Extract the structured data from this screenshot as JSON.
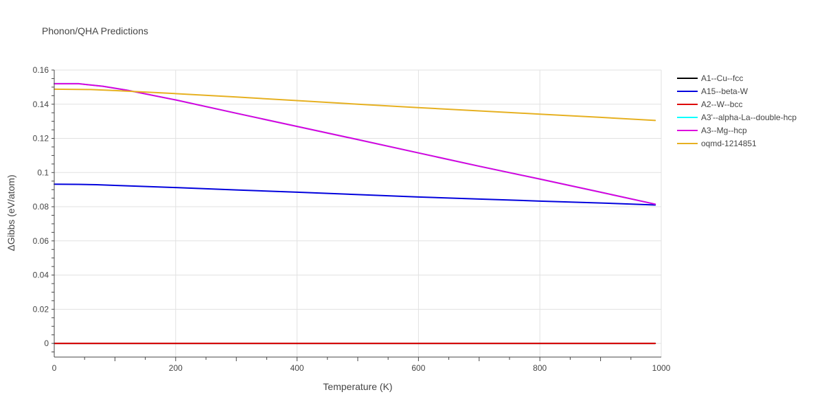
{
  "chart_data": {
    "type": "line",
    "title": "Phonon/QHA Predictions",
    "xlabel": "Temperature (K)",
    "ylabel": "ΔGibbs (eV/atom)",
    "xlim": [
      0,
      1000
    ],
    "ylim": [
      -0.008,
      0.16
    ],
    "xticks": [
      0,
      200,
      400,
      600,
      800,
      1000
    ],
    "xtick_labels": [
      "0",
      "200",
      "400",
      "600",
      "800",
      "1000"
    ],
    "yticks": [
      0,
      0.02,
      0.04,
      0.06,
      0.08,
      0.1,
      0.12,
      0.14,
      0.16
    ],
    "ytick_labels": [
      "0",
      "0.02",
      "0.04",
      "0.06",
      "0.08",
      "0.1",
      "0.12",
      "0.14",
      "0.16"
    ],
    "grid": true,
    "legend_position": "right",
    "series": [
      {
        "name": "A1--Cu--fcc",
        "color": "#000000",
        "x": [
          0,
          990
        ],
        "y": [
          0,
          0
        ]
      },
      {
        "name": "A15--beta-W",
        "color": "#0000dd",
        "x": [
          0,
          40,
          70,
          100,
          200,
          300,
          400,
          500,
          600,
          700,
          800,
          900,
          990
        ],
        "y": [
          0.0932,
          0.0931,
          0.0929,
          0.0925,
          0.0912,
          0.0898,
          0.0885,
          0.0871,
          0.0857,
          0.0845,
          0.0833,
          0.0822,
          0.081
        ]
      },
      {
        "name": "A2--W--bcc",
        "color": "#dd0000",
        "x": [
          0,
          990
        ],
        "y": [
          0,
          0
        ]
      },
      {
        "name": "A3'--alpha-La--double-hcp",
        "color": "#00ffff",
        "x": [
          0,
          40,
          80,
          120,
          200,
          300,
          400,
          500,
          600,
          700,
          800,
          900,
          990
        ],
        "y": [
          0.152,
          0.152,
          0.1505,
          0.1482,
          0.1425,
          0.1347,
          0.127,
          0.1193,
          0.1115,
          0.1037,
          0.0962,
          0.0885,
          0.0815
        ]
      },
      {
        "name": "A3--Mg--hcp",
        "color": "#dd00dd",
        "x": [
          0,
          40,
          80,
          120,
          200,
          300,
          400,
          500,
          600,
          700,
          800,
          900,
          990
        ],
        "y": [
          0.152,
          0.152,
          0.1505,
          0.1482,
          0.1425,
          0.1347,
          0.127,
          0.1193,
          0.1115,
          0.1037,
          0.0962,
          0.0885,
          0.0815
        ]
      },
      {
        "name": "oqmd-1214851",
        "color": "#e6b020",
        "x": [
          0,
          60,
          100,
          200,
          300,
          400,
          500,
          600,
          700,
          800,
          900,
          990
        ],
        "y": [
          0.1488,
          0.1486,
          0.148,
          0.1462,
          0.1442,
          0.1421,
          0.14,
          0.138,
          0.1361,
          0.1342,
          0.1323,
          0.1305
        ]
      }
    ]
  }
}
